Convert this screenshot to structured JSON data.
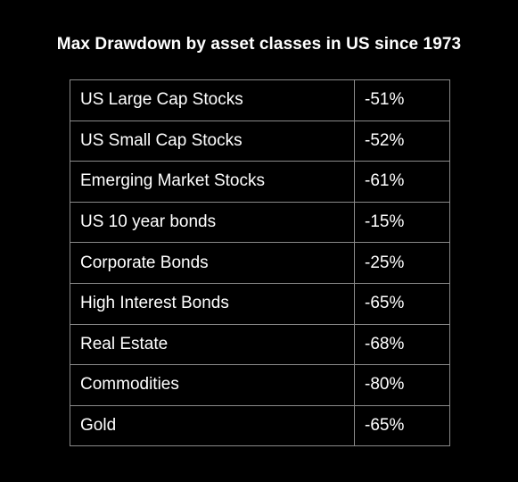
{
  "chart_data": {
    "type": "table",
    "title": "Max Drawdown by asset classes in US since 1973",
    "rows": [
      {
        "asset": "US Large Cap Stocks",
        "drawdown": "-51%",
        "value": -51
      },
      {
        "asset": "US Small Cap Stocks",
        "drawdown": "-52%",
        "value": -52
      },
      {
        "asset": "Emerging Market Stocks",
        "drawdown": "-61%",
        "value": -61
      },
      {
        "asset": "US 10 year bonds",
        "drawdown": "-15%",
        "value": -15
      },
      {
        "asset": "Corporate Bonds",
        "drawdown": "-25%",
        "value": -25
      },
      {
        "asset": "High Interest Bonds",
        "drawdown": "-65%",
        "value": -65
      },
      {
        "asset": "Real Estate",
        "drawdown": "-68%",
        "value": -68
      },
      {
        "asset": "Commodities",
        "drawdown": "-80%",
        "value": -80
      },
      {
        "asset": "Gold",
        "drawdown": "-65%",
        "value": -65
      }
    ]
  },
  "colors": {
    "background": "#000000",
    "text": "#ffffff",
    "grid": "#8a8a8a"
  }
}
